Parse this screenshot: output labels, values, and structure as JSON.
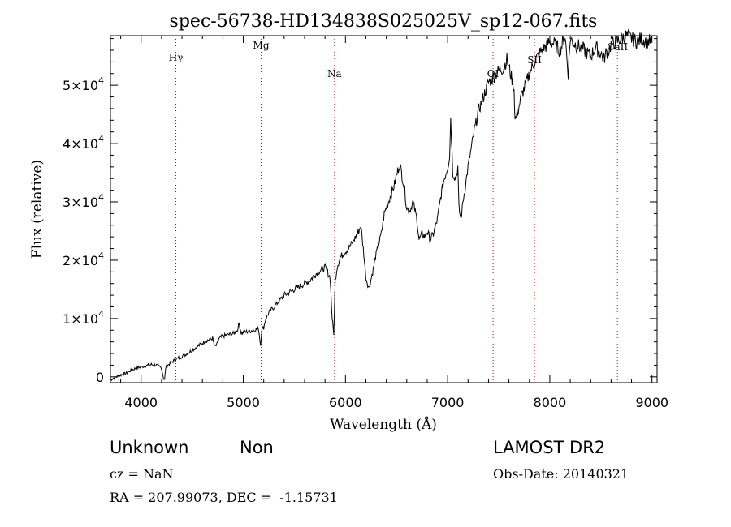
{
  "chart_data": {
    "type": "line",
    "title": "spec-56738-HD134838S025025V_sp12-067.fits",
    "xlabel": "Wavelength (Å)",
    "ylabel": "Flux (relative)",
    "xlim": [
      3700,
      9050
    ],
    "ylim": [
      -1000,
      58500
    ],
    "x_ticks": [
      {
        "value": 4000,
        "label": "4000"
      },
      {
        "value": 5000,
        "label": "5000"
      },
      {
        "value": 6000,
        "label": "6000"
      },
      {
        "value": 7000,
        "label": "7000"
      },
      {
        "value": 8000,
        "label": "8000"
      },
      {
        "value": 9000,
        "label": "9000"
      }
    ],
    "y_ticks": [
      {
        "value": 0,
        "label": "0",
        "exp": ""
      },
      {
        "value": 10000,
        "label": "1×10",
        "exp": "4"
      },
      {
        "value": 20000,
        "label": "2×10",
        "exp": "4"
      },
      {
        "value": 30000,
        "label": "3×10",
        "exp": "4"
      },
      {
        "value": 40000,
        "label": "4×10",
        "exp": "4"
      },
      {
        "value": 50000,
        "label": "5×10",
        "exp": "4"
      }
    ],
    "lines": [
      {
        "name": "Hγ",
        "wavelength": 4340
      },
      {
        "name": "Mg",
        "wavelength": 5175
      },
      {
        "name": "Na",
        "wavelength": 5893
      },
      {
        "name": "OI",
        "wavelength": 7445
      },
      {
        "name": "SII",
        "wavelength": 7850
      },
      {
        "name": "CaII",
        "wavelength": 8662
      }
    ],
    "line_color": "#cc0000",
    "series_color": "#000000",
    "series": [
      {
        "x": [
          3700,
          3780,
          3850,
          3900,
          3950,
          4000,
          4050,
          4100,
          4150,
          4200,
          4220,
          4230,
          4240,
          4260,
          4300,
          4340,
          4400,
          4450,
          4500,
          4550,
          4600,
          4650,
          4700,
          4720,
          4740,
          4760,
          4800,
          4850,
          4900,
          4940,
          4960,
          4980,
          5000,
          5050,
          5100,
          5150,
          5170,
          5180,
          5200,
          5220,
          5250,
          5300,
          5350,
          5400,
          5450,
          5500,
          5550,
          5600,
          5650,
          5700,
          5750,
          5800,
          5850,
          5870,
          5885,
          5893,
          5900,
          5920,
          5950,
          6000,
          6050,
          6100,
          6130,
          6150,
          6180,
          6200,
          6230,
          6260,
          6300,
          6350,
          6380,
          6400,
          6420,
          6450,
          6480,
          6500,
          6530,
          6560,
          6580,
          6600,
          6630,
          6660,
          6700,
          6720,
          6750,
          6780,
          6800,
          6830,
          6860,
          6900,
          6930,
          6960,
          7000,
          7020,
          7030,
          7050,
          7080,
          7100,
          7110,
          7130,
          7150,
          7180,
          7200,
          7230,
          7260,
          7300,
          7350,
          7400,
          7450,
          7500,
          7550,
          7580,
          7600,
          7630,
          7650,
          7660,
          7680,
          7700,
          7720,
          7750,
          7800,
          7850,
          7900,
          7950,
          8000,
          8050,
          8100,
          8150,
          8180,
          8200,
          8220,
          8250,
          8300,
          8350,
          8400,
          8450,
          8500,
          8530,
          8550,
          8580,
          8600,
          8650,
          8700,
          8750,
          8800,
          8850,
          8900,
          8950,
          9000
        ],
        "y": [
          -500,
          200,
          600,
          1100,
          1500,
          1700,
          1900,
          2100,
          2000,
          1500,
          -300,
          -500,
          1500,
          2000,
          2500,
          3000,
          3500,
          4000,
          4600,
          5200,
          5800,
          6300,
          6600,
          5200,
          5400,
          6500,
          7000,
          7200,
          7400,
          7900,
          9200,
          7500,
          7600,
          7800,
          8000,
          8200,
          5400,
          8000,
          8500,
          10000,
          11000,
          12000,
          13000,
          14000,
          14500,
          15000,
          15500,
          16000,
          16500,
          17500,
          18200,
          18800,
          17000,
          10000,
          7500,
          12000,
          16500,
          19000,
          20500,
          21500,
          22500,
          24000,
          25000,
          26000,
          21000,
          17000,
          15200,
          17500,
          21000,
          24500,
          28000,
          29000,
          30000,
          31500,
          33000,
          34500,
          36500,
          34000,
          32000,
          29000,
          28500,
          30000,
          27000,
          23500,
          24500,
          24000,
          25000,
          23500,
          24500,
          27000,
          30500,
          33500,
          36000,
          38000,
          44800,
          35000,
          34000,
          36000,
          29000,
          27000,
          30000,
          33500,
          36000,
          39000,
          42000,
          45500,
          48000,
          50500,
          51500,
          52500,
          53000,
          54500,
          53000,
          51000,
          49500,
          44000,
          45000,
          46500,
          48000,
          49500,
          52000,
          54000,
          55500,
          56500,
          57500,
          57000,
          56000,
          58500,
          52000,
          58000,
          57500,
          57000,
          56500,
          55800,
          55000,
          56500,
          55500,
          54500,
          55500,
          56000,
          57000,
          57500,
          58000,
          58500,
          58000,
          57500,
          58000,
          57500,
          57500
        ]
      }
    ],
    "grid": false,
    "legend": "none"
  },
  "info": {
    "class": "Unknown",
    "subclass": "Non",
    "survey": "LAMOST DR2",
    "cz": "cz = NaN",
    "obs_date": "Obs-Date: 20140321",
    "coords": "RA = 207.99073, DEC =  -1.15731"
  }
}
